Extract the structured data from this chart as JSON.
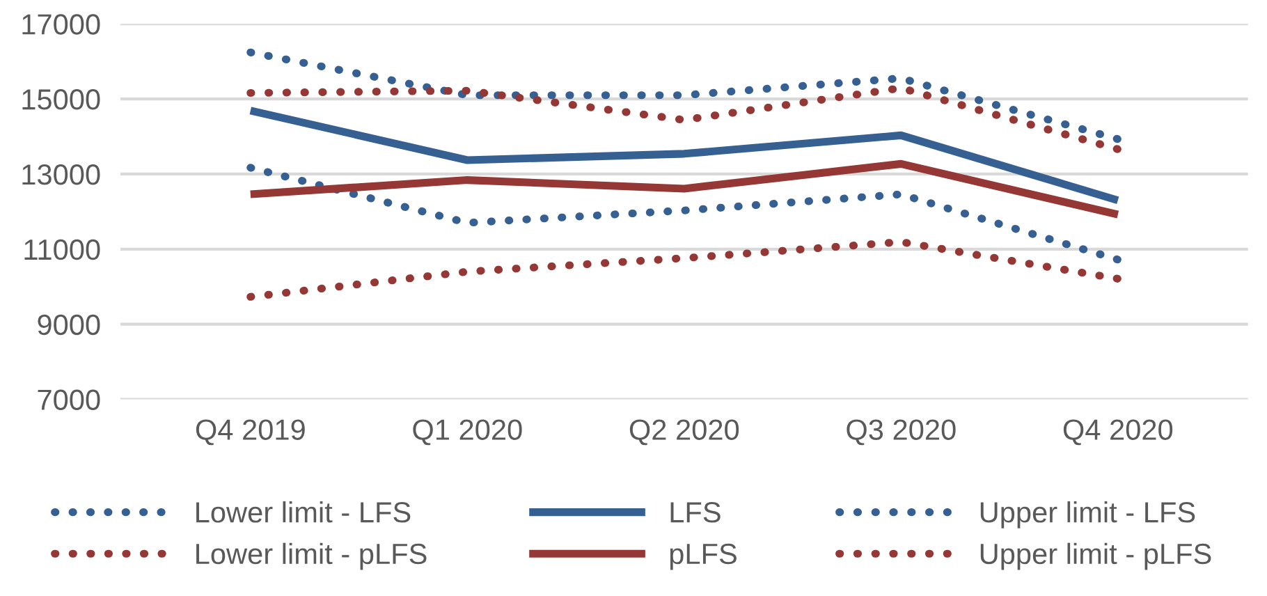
{
  "chart_data": {
    "type": "line",
    "categories": [
      "Q4 2019",
      "Q1 2020",
      "Q2 2020",
      "Q3 2020",
      "Q4 2020"
    ],
    "series": [
      {
        "name": "Lower limit - LFS",
        "color": "#376092",
        "line_style": "dotted",
        "values": [
          13170,
          11700,
          12030,
          12460,
          10720
        ]
      },
      {
        "name": "LFS",
        "color": "#376092",
        "line_style": "solid",
        "values": [
          14690,
          13370,
          13540,
          14030,
          12300
        ]
      },
      {
        "name": "Upper limit - LFS",
        "color": "#376092",
        "line_style": "dotted",
        "values": [
          16240,
          15100,
          15100,
          15550,
          13930
        ]
      },
      {
        "name": "Lower limit - pLFS",
        "color": "#953735",
        "line_style": "dotted",
        "values": [
          9730,
          10400,
          10760,
          11190,
          10210
        ]
      },
      {
        "name": "pLFS",
        "color": "#953735",
        "line_style": "solid",
        "values": [
          12460,
          12840,
          12610,
          13270,
          11920
        ]
      },
      {
        "name": "Upper limit - pLFS",
        "color": "#953735",
        "line_style": "dotted",
        "values": [
          15160,
          15220,
          14440,
          15290,
          13660
        ]
      }
    ],
    "ylim": [
      7000,
      17000
    ],
    "yticks": [
      7000,
      9000,
      11000,
      13000,
      15000,
      17000
    ],
    "grid": "y",
    "legend": "bottom",
    "marker": "none"
  }
}
